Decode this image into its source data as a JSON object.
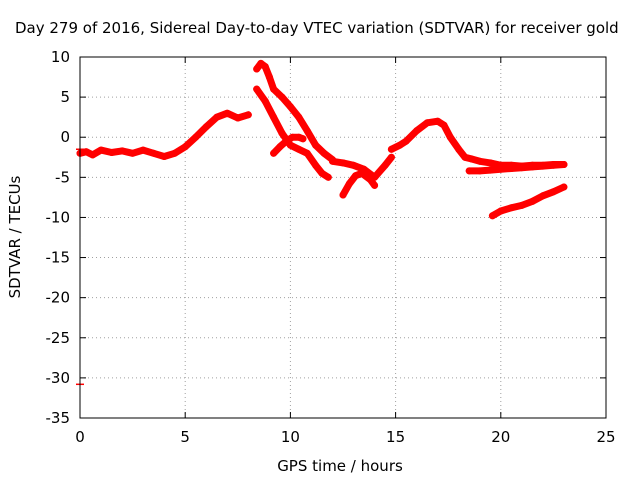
{
  "chart_data": {
    "type": "scatter",
    "title": "Day 279 of 2016, Sidereal Day-to-day VTEC variation (SDTVAR) for receiver gold",
    "xlabel": "GPS time / hours",
    "ylabel": "SDTVAR / TECUs",
    "xlim": [
      0,
      25
    ],
    "ylim": [
      -35,
      10
    ],
    "xticks": [
      "0",
      "5",
      "10",
      "15",
      "20",
      "25"
    ],
    "yticks": [
      "10",
      "5",
      "0",
      "-5",
      "-10",
      "-15",
      "-20",
      "-25",
      "-30",
      "-35"
    ],
    "grid": true,
    "series_color": "#ff0000",
    "segments": [
      {
        "x": [
          0.0,
          0.3,
          0.6,
          1.0,
          1.5,
          2.0,
          2.5,
          3.0,
          3.5,
          4.0,
          4.5,
          5.0,
          5.5,
          6.0,
          6.5,
          7.0,
          7.5,
          8.0
        ],
        "y": [
          -2.0,
          -1.8,
          -2.2,
          -1.6,
          -1.9,
          -1.7,
          -2.0,
          -1.6,
          -2.0,
          -2.4,
          -2.0,
          -1.2,
          0.0,
          1.3,
          2.5,
          3.0,
          2.4,
          2.8
        ]
      },
      {
        "x": [
          8.4,
          8.6,
          8.8,
          9.0,
          9.2,
          9.6,
          10.0,
          10.4,
          10.8,
          11.2,
          11.6,
          12.0
        ],
        "y": [
          8.5,
          9.2,
          8.8,
          7.5,
          6.0,
          5.0,
          3.8,
          2.5,
          0.8,
          -1.0,
          -2.0,
          -2.8
        ]
      },
      {
        "x": [
          8.4,
          8.8,
          9.2,
          9.6,
          10.0,
          10.4,
          10.8,
          11.2,
          11.5,
          11.8
        ],
        "y": [
          6.0,
          4.5,
          2.5,
          0.5,
          -1.0,
          -1.5,
          -2.0,
          -3.5,
          -4.5,
          -5.0
        ]
      },
      {
        "x": [
          9.2,
          9.5,
          9.8,
          10.1,
          10.4,
          10.6
        ],
        "y": [
          -2.0,
          -1.2,
          -0.5,
          0.0,
          0.0,
          -0.2
        ]
      },
      {
        "x": [
          12.0,
          12.5,
          13.0,
          13.5,
          14.0,
          14.5,
          14.8
        ],
        "y": [
          -3.0,
          -3.2,
          -3.5,
          -4.0,
          -5.0,
          -3.5,
          -2.5
        ]
      },
      {
        "x": [
          12.5,
          12.8,
          13.1,
          13.4,
          13.8,
          14.0
        ],
        "y": [
          -7.2,
          -5.8,
          -4.8,
          -4.5,
          -5.3,
          -6.0
        ]
      },
      {
        "x": [
          14.8,
          15.2,
          15.5,
          16.0,
          16.5,
          17.0,
          17.3,
          17.6,
          18.0,
          18.3,
          18.6,
          19.0,
          19.5,
          20.0,
          20.5,
          21.0,
          21.5,
          22.0,
          22.5,
          23.0
        ],
        "y": [
          -1.5,
          -1.0,
          -0.5,
          0.8,
          1.8,
          2.0,
          1.5,
          0.0,
          -1.5,
          -2.5,
          -2.7,
          -3.0,
          -3.2,
          -3.5,
          -3.5,
          -3.6,
          -3.5,
          -3.5,
          -3.4,
          -3.4
        ]
      },
      {
        "x": [
          18.5,
          19.0,
          19.5,
          20.0,
          20.5,
          21.0,
          21.5,
          22.0,
          22.5,
          23.0
        ],
        "y": [
          -4.2,
          -4.2,
          -4.1,
          -4.0,
          -3.9,
          -3.8,
          -3.7,
          -3.6,
          -3.5,
          -3.4
        ]
      },
      {
        "x": [
          19.6,
          20.0,
          20.5,
          21.0,
          21.5,
          22.0,
          22.5,
          23.0
        ],
        "y": [
          -9.8,
          -9.2,
          -8.8,
          -8.5,
          -8.0,
          -7.3,
          -6.8,
          -6.2
        ]
      }
    ],
    "isolated_points": [
      {
        "x": 0.0,
        "y": -1.5
      },
      {
        "x": 0.0,
        "y": -30.8
      }
    ]
  }
}
